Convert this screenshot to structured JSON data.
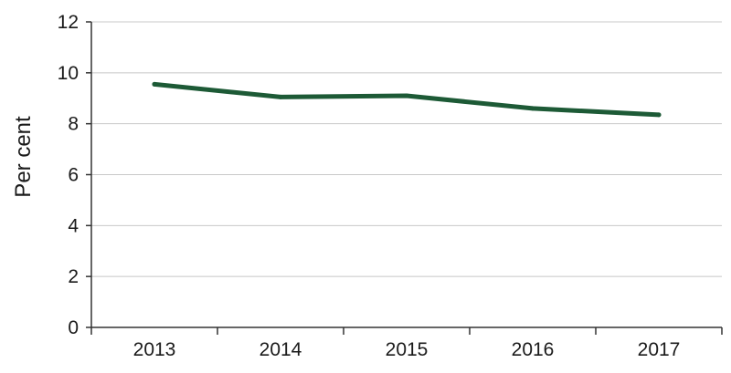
{
  "chart_data": {
    "type": "line",
    "title": "",
    "xlabel": "",
    "ylabel": "Per cent",
    "categories": [
      "2013",
      "2014",
      "2015",
      "2016",
      "2017"
    ],
    "series": [
      {
        "values": [
          9.55,
          9.05,
          9.1,
          8.6,
          8.35
        ]
      }
    ],
    "ylim": [
      0,
      12
    ],
    "yticks": [
      0,
      2,
      4,
      6,
      8,
      10,
      12
    ],
    "grid": true,
    "legend": "none",
    "colors": {
      "line": "#1d5a36",
      "grid": "#c8c8c8",
      "axis": "#333333",
      "text": "#1a1a1a"
    }
  }
}
